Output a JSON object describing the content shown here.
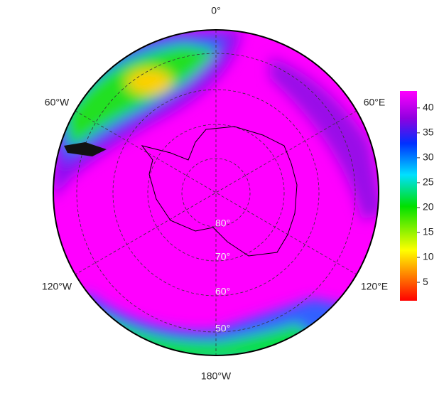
{
  "map": {
    "lon_labels": [
      "0°",
      "60°E",
      "120°E",
      "180°W",
      "120°W",
      "60°W"
    ],
    "lat_labels": [
      "80°",
      "70°",
      "60°",
      "50°"
    ],
    "colorbar": {
      "lim": [
        1.3,
        43.4
      ],
      "ticks": [
        5,
        10,
        15,
        20,
        25,
        30,
        35,
        40
      ]
    }
  }
}
